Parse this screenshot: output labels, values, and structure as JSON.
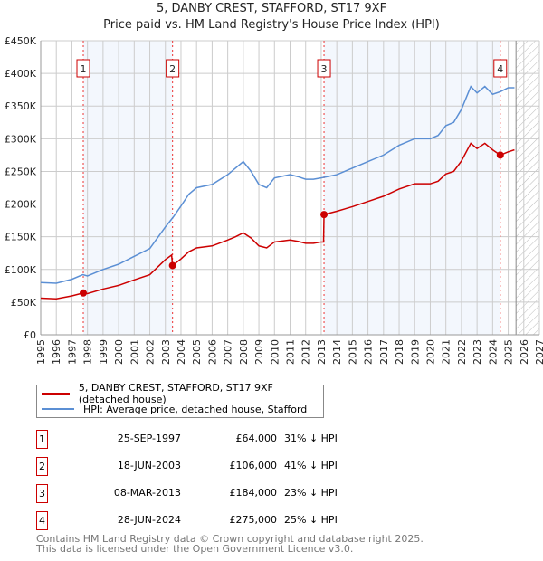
{
  "chart_data": {
    "type": "line",
    "title": "5, DANBY CREST, STAFFORD, ST17 9XF",
    "subtitle": "Price paid vs. HM Land Registry's House Price Index (HPI)",
    "xlim": [
      1995,
      2027
    ],
    "ylim": [
      0,
      450000
    ],
    "yticks": [
      0,
      50000,
      100000,
      150000,
      200000,
      250000,
      300000,
      350000,
      400000,
      450000
    ],
    "ytick_labels": [
      "£0",
      "£50K",
      "£100K",
      "£150K",
      "£200K",
      "£250K",
      "£300K",
      "£350K",
      "£400K",
      "£450K"
    ],
    "xticks": [
      1995,
      1996,
      1997,
      1998,
      1999,
      2000,
      2001,
      2002,
      2003,
      2004,
      2005,
      2006,
      2007,
      2008,
      2009,
      2010,
      2011,
      2012,
      2013,
      2014,
      2015,
      2016,
      2017,
      2018,
      2019,
      2020,
      2021,
      2022,
      2023,
      2024,
      2025,
      2026,
      2027
    ],
    "grid": true,
    "forecast_hatch_from": 2025.5,
    "series": [
      {
        "name": "5, DANBY CREST, STAFFORD, ST17 9XF (detached house)",
        "color": "#cc0000",
        "x": [
          1995,
          1996,
          1997,
          1997.73,
          1998,
          1999,
          2000,
          2001,
          2002,
          2003,
          2003.4,
          2003.46,
          2004,
          2004.5,
          2005,
          2006,
          2007,
          2007.5,
          2008,
          2008.5,
          2009,
          2009.5,
          2010,
          2011,
          2011.5,
          2012,
          2012.5,
          2013,
          2013.15,
          2013.18,
          2014,
          2015,
          2016,
          2017,
          2018,
          2019,
          2020,
          2020.5,
          2021,
          2021.5,
          2022,
          2022.6,
          2023,
          2023.5,
          2024,
          2024.49,
          2025,
          2025.4
        ],
        "y": [
          56000,
          55000,
          59500,
          64000,
          63000,
          70000,
          75600,
          84000,
          92000,
          115000,
          122000,
          106000,
          116000,
          127000,
          133000,
          136000,
          145000,
          150000,
          156000,
          148000,
          136000,
          133000,
          142000,
          145000,
          143000,
          140000,
          140000,
          142000,
          142000,
          184000,
          189000,
          196000,
          204000,
          212000,
          223000,
          231000,
          231000,
          235000,
          246000,
          250000,
          266000,
          293000,
          285000,
          293000,
          283000,
          275000,
          280000,
          283000
        ]
      },
      {
        "name": "HPI: Average price, detached house, Stafford",
        "color": "#5b8fd4",
        "x": [
          1995,
          1996,
          1997,
          1997.7,
          1998,
          1999,
          2000,
          2001,
          2002,
          2003,
          2003.5,
          2004,
          2004.5,
          2005,
          2006,
          2007,
          2007.5,
          2008,
          2008.5,
          2009,
          2009.5,
          2010,
          2011,
          2011.5,
          2012,
          2012.5,
          2013,
          2014,
          2015,
          2016,
          2017,
          2018,
          2019,
          2020,
          2020.5,
          2021,
          2021.5,
          2022,
          2022.6,
          2023,
          2023.5,
          2024,
          2024.5,
          2025,
          2025.4
        ],
        "y": [
          80000,
          79000,
          85000,
          92000,
          90000,
          100000,
          108000,
          120000,
          132000,
          165000,
          180000,
          197000,
          215000,
          225000,
          230000,
          245000,
          255000,
          265000,
          250000,
          230000,
          225000,
          240000,
          245000,
          242000,
          238000,
          238000,
          240000,
          245000,
          255000,
          265000,
          275000,
          290000,
          300000,
          300000,
          305000,
          320000,
          325000,
          345000,
          380000,
          370000,
          380000,
          368000,
          372000,
          378000,
          378000
        ]
      }
    ],
    "sales": [
      {
        "label": "1",
        "x": 1997.73,
        "price": 64000,
        "date": "25-SEP-1997",
        "price_text": "£64,000",
        "hpi_text": "31% ↓ HPI"
      },
      {
        "label": "2",
        "x": 2003.46,
        "price": 106000,
        "date": "18-JUN-2003",
        "price_text": "£106,000",
        "hpi_text": "41% ↓ HPI"
      },
      {
        "label": "3",
        "x": 2013.18,
        "price": 184000,
        "date": "08-MAR-2013",
        "price_text": "£184,000",
        "hpi_text": "23% ↓ HPI"
      },
      {
        "label": "4",
        "x": 2024.49,
        "price": 275000,
        "date": "28-JUN-2024",
        "price_text": "£275,000",
        "hpi_text": "25% ↓ HPI"
      }
    ]
  },
  "legend": {
    "red": "5, DANBY CREST, STAFFORD, ST17 9XF (detached house)",
    "blue": "HPI: Average price, detached house, Stafford"
  },
  "footer": {
    "line1": "Contains HM Land Registry data © Crown copyright and database right 2025.",
    "line2": "This data is licensed under the Open Government Licence v3.0."
  }
}
